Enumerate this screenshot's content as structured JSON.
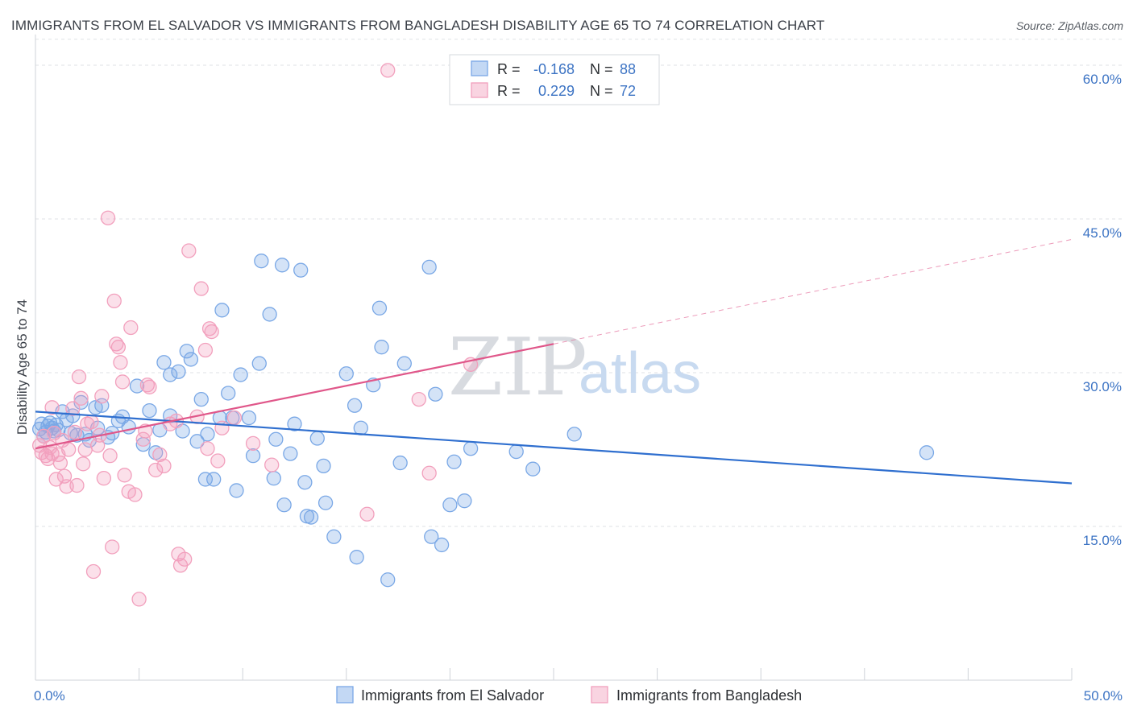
{
  "title": "IMMIGRANTS FROM EL SALVADOR VS IMMIGRANTS FROM BANGLADESH DISABILITY AGE 65 TO 74 CORRELATION CHART",
  "source": "Source: ZipAtlas.com",
  "watermark": {
    "zip": "ZIP",
    "atlas": "atlas"
  },
  "chart_data": {
    "type": "scatter",
    "ylabel": "Disability Age 65 to 74",
    "xlim": [
      0,
      50
    ],
    "ylim": [
      0,
      63
    ],
    "x_tick_labels": [
      {
        "value": 0,
        "label": "0.0%"
      },
      {
        "value": 50,
        "label": "50.0%"
      }
    ],
    "y_tick_labels": [
      {
        "value": 15,
        "label": "15.0%"
      },
      {
        "value": 30,
        "label": "30.0%"
      },
      {
        "value": 45,
        "label": "45.0%"
      },
      {
        "value": 60,
        "label": "60.0%"
      }
    ],
    "grid": true,
    "legend_position": "top-center",
    "stats": [
      {
        "r_label": "R = ",
        "r": "-0.168",
        "n_label": "N = ",
        "n": "88"
      },
      {
        "r_label": "R = ",
        "r": "0.229",
        "n_label": "N = ",
        "n": "72"
      }
    ],
    "series": [
      {
        "name": "Immigrants from El Salvador",
        "color": "#7aa8e6",
        "line_color": "#2f6fcf",
        "trend": {
          "x0": 0,
          "y0": 26.2,
          "x1": 50,
          "y1": 19.2
        },
        "points": [
          [
            0.2,
            24.5
          ],
          [
            0.3,
            25
          ],
          [
            0.4,
            23.8
          ],
          [
            0.5,
            24.2
          ],
          [
            0.6,
            24.8
          ],
          [
            0.7,
            25.1
          ],
          [
            0.8,
            24.6
          ],
          [
            0.9,
            24.3
          ],
          [
            1.0,
            24.9
          ],
          [
            1.1,
            24.4
          ],
          [
            1.3,
            26.2
          ],
          [
            1.5,
            25.4
          ],
          [
            1.7,
            24.1
          ],
          [
            1.8,
            25.8
          ],
          [
            2.0,
            23.9
          ],
          [
            2.2,
            27.1
          ],
          [
            2.4,
            24.0
          ],
          [
            2.6,
            23.4
          ],
          [
            2.9,
            26.6
          ],
          [
            3.0,
            24.6
          ],
          [
            3.2,
            26.8
          ],
          [
            3.5,
            23.7
          ],
          [
            3.7,
            24.1
          ],
          [
            4.0,
            25.3
          ],
          [
            4.2,
            25.7
          ],
          [
            4.5,
            24.7
          ],
          [
            4.9,
            28.7
          ],
          [
            5.2,
            23.0
          ],
          [
            5.5,
            26.3
          ],
          [
            5.8,
            22.2
          ],
          [
            6.0,
            24.4
          ],
          [
            6.2,
            31.0
          ],
          [
            6.5,
            29.8
          ],
          [
            6.5,
            25.8
          ],
          [
            6.9,
            30.1
          ],
          [
            7.1,
            24.3
          ],
          [
            7.3,
            32.1
          ],
          [
            7.5,
            31.3
          ],
          [
            7.8,
            23.3
          ],
          [
            8.0,
            27.4
          ],
          [
            8.2,
            19.6
          ],
          [
            8.3,
            24.0
          ],
          [
            8.6,
            19.6
          ],
          [
            8.9,
            25.6
          ],
          [
            9.0,
            36.1
          ],
          [
            9.3,
            28.0
          ],
          [
            9.5,
            25.6
          ],
          [
            9.7,
            18.5
          ],
          [
            9.9,
            29.8
          ],
          [
            10.3,
            25.6
          ],
          [
            10.5,
            21.9
          ],
          [
            10.8,
            30.9
          ],
          [
            10.9,
            40.9
          ],
          [
            11.3,
            35.7
          ],
          [
            11.5,
            19.7
          ],
          [
            11.6,
            23.5
          ],
          [
            11.9,
            40.5
          ],
          [
            12.0,
            17.1
          ],
          [
            12.3,
            22.1
          ],
          [
            12.5,
            25.0
          ],
          [
            12.8,
            40.0
          ],
          [
            13.0,
            19.3
          ],
          [
            13.1,
            16.0
          ],
          [
            13.3,
            15.9
          ],
          [
            13.6,
            23.6
          ],
          [
            13.9,
            20.9
          ],
          [
            14.0,
            17.3
          ],
          [
            14.4,
            14.0
          ],
          [
            15.0,
            29.9
          ],
          [
            15.4,
            26.8
          ],
          [
            15.5,
            12.0
          ],
          [
            15.7,
            24.6
          ],
          [
            16.3,
            28.8
          ],
          [
            16.6,
            36.3
          ],
          [
            16.7,
            32.5
          ],
          [
            17.0,
            9.8
          ],
          [
            17.6,
            21.2
          ],
          [
            17.8,
            30.9
          ],
          [
            19.0,
            40.3
          ],
          [
            19.1,
            14.0
          ],
          [
            19.3,
            27.9
          ],
          [
            19.6,
            13.2
          ],
          [
            20.0,
            17.1
          ],
          [
            20.2,
            21.3
          ],
          [
            20.7,
            17.5
          ],
          [
            21.0,
            22.6
          ],
          [
            23.2,
            22.3
          ],
          [
            24.0,
            20.6
          ],
          [
            26.0,
            24.0
          ],
          [
            43.0,
            22.2
          ]
        ]
      },
      {
        "name": "Immigrants from Bangladesh",
        "color": "#f2a0bd",
        "line_color": "#e0578a",
        "trend": {
          "x0": 0,
          "y0": 22.6,
          "x1": 25,
          "y1": 32.8
        },
        "trend_dashed": {
          "x0": 25,
          "y0": 32.8,
          "x1": 50,
          "y1": 43.0
        },
        "points": [
          [
            0.2,
            22.9
          ],
          [
            0.3,
            22.2
          ],
          [
            0.4,
            23.8
          ],
          [
            0.5,
            21.9
          ],
          [
            0.6,
            21.6
          ],
          [
            0.7,
            22.7
          ],
          [
            0.8,
            26.6
          ],
          [
            0.8,
            22.1
          ],
          [
            0.9,
            24.1
          ],
          [
            1.0,
            19.6
          ],
          [
            1.1,
            22.0
          ],
          [
            1.2,
            21.2
          ],
          [
            1.3,
            23.4
          ],
          [
            1.4,
            19.9
          ],
          [
            1.5,
            18.9
          ],
          [
            1.6,
            22.5
          ],
          [
            1.8,
            26.5
          ],
          [
            1.9,
            24.2
          ],
          [
            2.0,
            19.0
          ],
          [
            2.1,
            29.6
          ],
          [
            2.2,
            27.5
          ],
          [
            2.3,
            21.1
          ],
          [
            2.4,
            22.5
          ],
          [
            2.5,
            25.0
          ],
          [
            2.7,
            25.2
          ],
          [
            2.8,
            10.6
          ],
          [
            3.0,
            22.9
          ],
          [
            3.1,
            23.9
          ],
          [
            3.2,
            27.7
          ],
          [
            3.3,
            19.7
          ],
          [
            3.5,
            45.1
          ],
          [
            3.6,
            21.9
          ],
          [
            3.7,
            13.0
          ],
          [
            3.8,
            37.0
          ],
          [
            3.9,
            32.8
          ],
          [
            4.0,
            32.5
          ],
          [
            4.1,
            31.0
          ],
          [
            4.2,
            29.1
          ],
          [
            4.3,
            20.0
          ],
          [
            4.5,
            18.4
          ],
          [
            4.6,
            34.4
          ],
          [
            4.8,
            18.1
          ],
          [
            5.0,
            7.9
          ],
          [
            5.2,
            23.5
          ],
          [
            5.3,
            24.3
          ],
          [
            5.4,
            28.8
          ],
          [
            5.5,
            28.6
          ],
          [
            5.8,
            20.5
          ],
          [
            6.0,
            22.0
          ],
          [
            6.2,
            20.9
          ],
          [
            6.5,
            25.0
          ],
          [
            6.8,
            25.3
          ],
          [
            6.9,
            12.3
          ],
          [
            7.0,
            11.2
          ],
          [
            7.2,
            11.8
          ],
          [
            7.4,
            41.9
          ],
          [
            7.8,
            25.7
          ],
          [
            8.0,
            38.2
          ],
          [
            8.2,
            32.2
          ],
          [
            8.3,
            22.6
          ],
          [
            8.4,
            34.3
          ],
          [
            8.5,
            34.0
          ],
          [
            8.8,
            21.4
          ],
          [
            9.0,
            24.6
          ],
          [
            9.6,
            25.6
          ],
          [
            10.5,
            23.1
          ],
          [
            11.4,
            21.0
          ],
          [
            16.0,
            16.2
          ],
          [
            17.0,
            59.5
          ],
          [
            18.5,
            27.4
          ],
          [
            19.0,
            20.2
          ],
          [
            21.0,
            30.8
          ]
        ]
      }
    ]
  }
}
